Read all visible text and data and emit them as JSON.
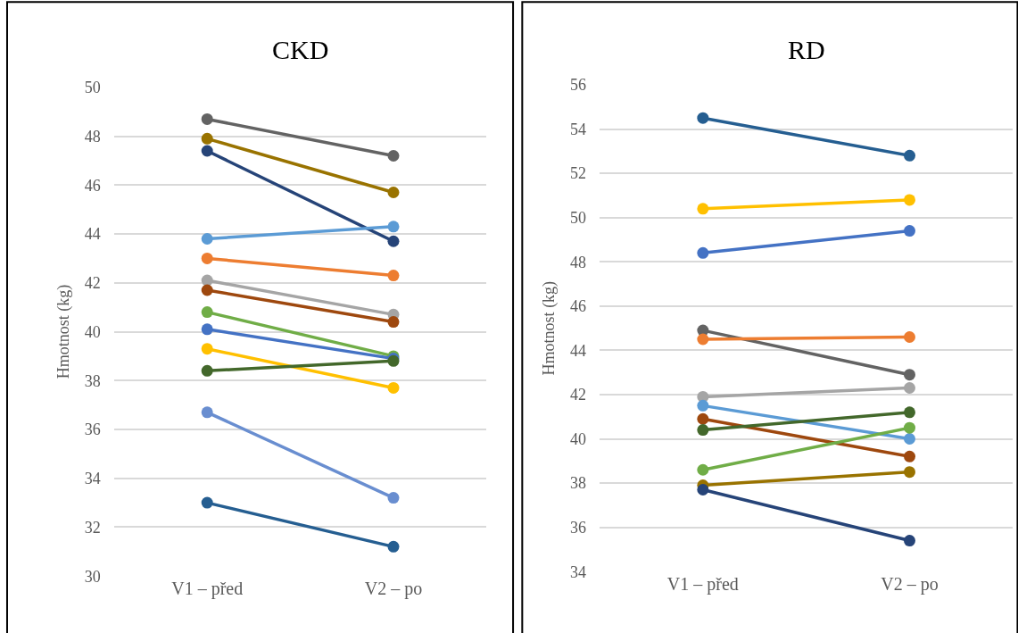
{
  "chart_data": [
    {
      "type": "line",
      "title": "CKD",
      "ylabel": "Hmotnost (kg)",
      "categories": [
        "V1 – před",
        "V2 – po"
      ],
      "ylim": [
        30,
        50
      ],
      "yticks": [
        30,
        32,
        34,
        36,
        38,
        40,
        42,
        44,
        46,
        48,
        50
      ],
      "grid": "y",
      "marker": "circle",
      "line_style": "solid",
      "series": [
        {
          "color": "#636363",
          "values": [
            48.7,
            47.2
          ]
        },
        {
          "color": "#997300",
          "values": [
            47.9,
            45.7
          ]
        },
        {
          "color": "#264478",
          "values": [
            47.4,
            43.7
          ]
        },
        {
          "color": "#5b9bd5",
          "values": [
            43.8,
            44.3
          ]
        },
        {
          "color": "#ed7d31",
          "values": [
            43.0,
            42.3
          ]
        },
        {
          "color": "#a5a5a5",
          "values": [
            42.1,
            40.7
          ]
        },
        {
          "color": "#9e480e",
          "values": [
            41.7,
            40.4
          ]
        },
        {
          "color": "#70ad47",
          "values": [
            40.8,
            39.0
          ]
        },
        {
          "color": "#4472c4",
          "values": [
            40.1,
            38.9
          ]
        },
        {
          "color": "#ffc000",
          "values": [
            39.3,
            37.7
          ]
        },
        {
          "color": "#43682b",
          "values": [
            38.4,
            38.8
          ]
        },
        {
          "color": "#698ed0",
          "values": [
            36.7,
            33.2
          ]
        },
        {
          "color": "#255e91",
          "values": [
            33.0,
            31.2
          ]
        }
      ]
    },
    {
      "type": "line",
      "title": "RD",
      "ylabel": "Hmotnost (kg)",
      "categories": [
        "V1 – před",
        "V2 – po"
      ],
      "ylim": [
        34,
        56
      ],
      "yticks": [
        34,
        36,
        38,
        40,
        42,
        44,
        46,
        48,
        50,
        52,
        54,
        56
      ],
      "grid": "y",
      "marker": "circle",
      "line_style": "solid",
      "series": [
        {
          "color": "#255e91",
          "values": [
            54.5,
            52.8
          ]
        },
        {
          "color": "#ffc000",
          "values": [
            50.4,
            50.8
          ]
        },
        {
          "color": "#4472c4",
          "values": [
            48.4,
            49.4
          ]
        },
        {
          "color": "#636363",
          "values": [
            44.9,
            42.9
          ]
        },
        {
          "color": "#ed7d31",
          "values": [
            44.5,
            44.6
          ]
        },
        {
          "color": "#a5a5a5",
          "values": [
            41.9,
            42.3
          ]
        },
        {
          "color": "#5b9bd5",
          "values": [
            41.5,
            40.0
          ]
        },
        {
          "color": "#9e480e",
          "values": [
            40.9,
            39.2
          ]
        },
        {
          "color": "#43682b",
          "values": [
            40.4,
            41.2
          ]
        },
        {
          "color": "#70ad47",
          "values": [
            38.6,
            40.5
          ]
        },
        {
          "color": "#997300",
          "values": [
            37.9,
            38.5
          ]
        },
        {
          "color": "#264478",
          "values": [
            37.7,
            35.4
          ]
        }
      ]
    }
  ]
}
